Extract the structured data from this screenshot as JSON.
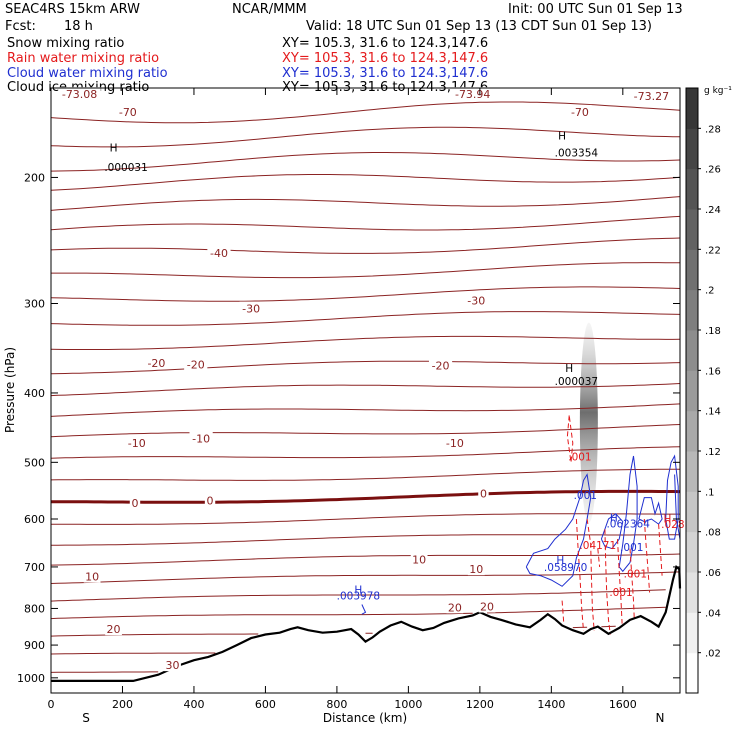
{
  "header": {
    "model": "SEAC4RS 15km ARW",
    "org": "NCAR/MMM",
    "init": "Init: 00 UTC Sun 01 Sep 13",
    "fcst_label": "Fcst:",
    "fcst_value": "18 h",
    "valid": "Valid: 18 UTC Sun 01 Sep 13 (13 CDT Sun 01 Sep 13)"
  },
  "fields": [
    {
      "name": "Snow mixing ratio",
      "xy": "XY= 105.3, 31.6 to 124.3,147.6",
      "color": "#000000"
    },
    {
      "name": "Rain water mixing ratio",
      "xy": "XY= 105.3, 31.6 to 124.3,147.6",
      "color": "#e41a1c"
    },
    {
      "name": "Cloud water mixing ratio",
      "xy": "XY= 105.3, 31.6 to 124.3,147.6",
      "color": "#1f2fd0"
    },
    {
      "name": "Cloud ice mixing ratio",
      "xy": "XY= 105.3, 31.6 to 124.3,147.6",
      "color": "#000000"
    }
  ],
  "colorbar": {
    "unit": "g kg⁻¹",
    "ticks": [
      ".02",
      ".04",
      ".06",
      ".08",
      ".1",
      ".12",
      ".14",
      ".16",
      ".18",
      ".2",
      ".22",
      ".24",
      ".26",
      ".28"
    ],
    "values": [
      0.02,
      0.04,
      0.06,
      0.08,
      0.1,
      0.12,
      0.14,
      0.16,
      0.18,
      0.2,
      0.22,
      0.24,
      0.26,
      0.28
    ]
  },
  "chart_data": {
    "type": "contour",
    "xlabel": "Distance (km)",
    "ylabel": "Pressure (hPa)",
    "xlim": [
      0,
      1760
    ],
    "ylim": [
      1050,
      150
    ],
    "y_scale": "log",
    "x_ticks": [
      0,
      200,
      400,
      600,
      800,
      1000,
      1200,
      1400,
      1600
    ],
    "y_ticks": [
      200,
      300,
      400,
      500,
      600,
      700,
      800,
      900,
      1000
    ],
    "x_end_labels": {
      "left": "S",
      "right": "N"
    },
    "temperature_labels": [
      {
        "text": "-73.08",
        "x": 80,
        "p": 153
      },
      {
        "text": "-73.94",
        "x": 1180,
        "p": 153
      },
      {
        "text": "-73.27",
        "x": 1680,
        "p": 154
      },
      {
        "text": "-70",
        "x": 215,
        "p": 162
      },
      {
        "text": "-70",
        "x": 1480,
        "p": 162
      },
      {
        "text": "-40",
        "x": 470,
        "p": 255
      },
      {
        "text": "-30",
        "x": 560,
        "p": 305
      },
      {
        "text": "-30",
        "x": 1190,
        "p": 297
      },
      {
        "text": "-20",
        "x": 295,
        "p": 363
      },
      {
        "text": "-20",
        "x": 405,
        "p": 365
      },
      {
        "text": "-20",
        "x": 1090,
        "p": 366
      },
      {
        "text": "-10",
        "x": 240,
        "p": 470
      },
      {
        "text": "-10",
        "x": 420,
        "p": 463
      },
      {
        "text": "-10",
        "x": 1130,
        "p": 470
      },
      {
        "text": "0",
        "x": 235,
        "p": 570
      },
      {
        "text": "0",
        "x": 445,
        "p": 565
      },
      {
        "text": "0",
        "x": 1210,
        "p": 553
      },
      {
        "text": "10",
        "x": 115,
        "p": 722
      },
      {
        "text": "10",
        "x": 1030,
        "p": 684
      },
      {
        "text": "10",
        "x": 1190,
        "p": 705
      },
      {
        "text": "20",
        "x": 175,
        "p": 855
      },
      {
        "text": "20",
        "x": 1130,
        "p": 797
      },
      {
        "text": "20",
        "x": 1220,
        "p": 795
      },
      {
        "text": "30",
        "x": 340,
        "p": 960
      }
    ],
    "extrema_labels": [
      {
        "text": "H",
        "x": 175,
        "p": 184,
        "color": "#000000"
      },
      {
        "text": ".000031",
        "x": 210,
        "p": 196,
        "color": "#000000"
      },
      {
        "text": "H",
        "x": 1430,
        "p": 177,
        "color": "#000000"
      },
      {
        "text": ".003354",
        "x": 1470,
        "p": 187,
        "color": "#000000"
      },
      {
        "text": "H",
        "x": 1450,
        "p": 374,
        "color": "#000000"
      },
      {
        "text": ".000037",
        "x": 1470,
        "p": 390,
        "color": "#000000"
      },
      {
        "text": "H",
        "x": 860,
        "p": 763,
        "color": "#1f2fd0"
      },
      {
        "text": ".003978",
        "x": 860,
        "p": 777,
        "color": "#1f2fd0"
      },
      {
        "text": "H",
        "x": 1425,
        "p": 693,
        "color": "#1f2fd0"
      },
      {
        "text": ".058970",
        "x": 1440,
        "p": 709,
        "color": "#1f2fd0"
      },
      {
        "text": "H",
        "x": 1575,
        "p": 605,
        "color": "#1f2fd0"
      },
      {
        "text": ".062364",
        "x": 1615,
        "p": 617,
        "color": "#1f2fd0"
      },
      {
        "text": ".001",
        "x": 1495,
        "p": 563,
        "color": "#1f2fd0"
      },
      {
        "text": ".001",
        "x": 1625,
        "p": 665,
        "color": "#1f2fd0"
      },
      {
        "text": ".001",
        "x": 1480,
        "p": 497,
        "color": "#e41a1c"
      },
      {
        "text": ".04171",
        "x": 1530,
        "p": 661,
        "color": "#e41a1c"
      },
      {
        "text": ".001",
        "x": 1595,
        "p": 768,
        "color": "#e41a1c"
      },
      {
        "text": ".001",
        "x": 1635,
        "p": 724,
        "color": "#e41a1c"
      },
      {
        "text": "H",
        "x": 1725,
        "p": 607,
        "color": "#e41a1c"
      },
      {
        "text": ".028",
        "x": 1740,
        "p": 618,
        "color": "#e41a1c"
      }
    ],
    "contour_interval_temp": 5,
    "terrain_profile": [
      [
        0,
        1010
      ],
      [
        230,
        1010
      ],
      [
        300,
        990
      ],
      [
        360,
        960
      ],
      [
        400,
        945
      ],
      [
        440,
        935
      ],
      [
        480,
        920
      ],
      [
        520,
        900
      ],
      [
        560,
        880
      ],
      [
        600,
        870
      ],
      [
        640,
        865
      ],
      [
        670,
        855
      ],
      [
        690,
        850
      ],
      [
        720,
        858
      ],
      [
        760,
        865
      ],
      [
        800,
        862
      ],
      [
        840,
        855
      ],
      [
        860,
        870
      ],
      [
        880,
        890
      ],
      [
        900,
        878
      ],
      [
        920,
        862
      ],
      [
        950,
        845
      ],
      [
        980,
        835
      ],
      [
        1010,
        848
      ],
      [
        1040,
        858
      ],
      [
        1070,
        852
      ],
      [
        1100,
        838
      ],
      [
        1140,
        826
      ],
      [
        1180,
        818
      ],
      [
        1200,
        810
      ],
      [
        1230,
        822
      ],
      [
        1260,
        830
      ],
      [
        1300,
        842
      ],
      [
        1340,
        850
      ],
      [
        1370,
        830
      ],
      [
        1390,
        815
      ],
      [
        1410,
        828
      ],
      [
        1430,
        845
      ],
      [
        1460,
        858
      ],
      [
        1490,
        868
      ],
      [
        1510,
        855
      ],
      [
        1530,
        848
      ],
      [
        1560,
        868
      ],
      [
        1590,
        852
      ],
      [
        1620,
        830
      ],
      [
        1650,
        820
      ],
      [
        1680,
        835
      ],
      [
        1700,
        848
      ],
      [
        1720,
        810
      ],
      [
        1740,
        730
      ],
      [
        1750,
        700
      ],
      [
        1758,
        705
      ],
      [
        1760,
        750
      ]
    ]
  }
}
